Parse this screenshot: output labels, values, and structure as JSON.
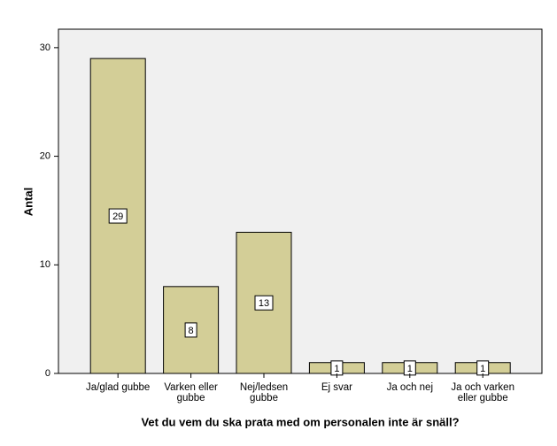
{
  "chart_data": {
    "type": "bar",
    "x_label": "Vet du vem du ska prata med om personalen inte är snäll?",
    "y_label": "Antal",
    "categories": [
      "Ja/glad gubbe",
      "Varken eller gubbe",
      "Nej/ledsen gubbe",
      "Ej svar",
      "Ja och nej",
      "Ja och varken eller gubbe"
    ],
    "values": [
      29,
      8,
      13,
      1,
      1,
      1
    ],
    "color": "#d3ce97",
    "ylim": [
      0,
      31.7
    ],
    "yticks": [
      0,
      10,
      20,
      30
    ],
    "grid": false
  }
}
